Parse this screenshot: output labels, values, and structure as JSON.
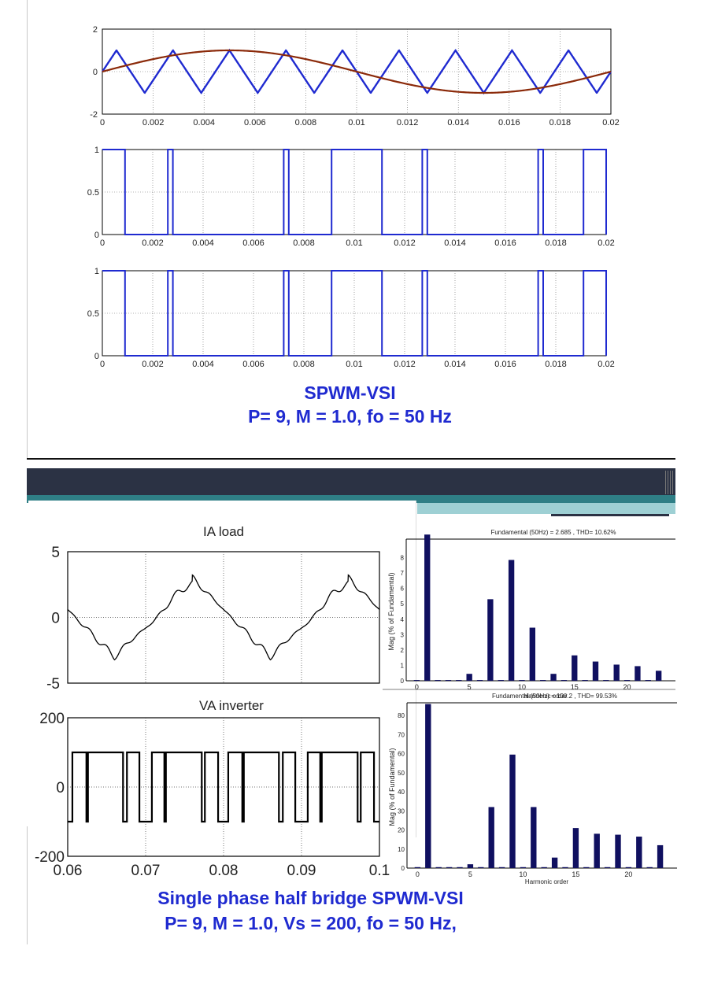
{
  "top_caption": {
    "line1": "SPWM-VSI",
    "line2": "P= 9, M = 1.0, fo = 50 Hz"
  },
  "bottom_caption": {
    "line1": "Single phase half bridge SPWM-VSI",
    "line2": "P= 9, M = 1.0, Vs = 200, fo = 50 Hz,"
  },
  "colors": {
    "carrier": "#1f2ad0",
    "reference": "#8b2a0a",
    "pulse": "#1f2ad0",
    "trace": "#000000",
    "bar": "#101060",
    "caption": "#1f2ad0"
  },
  "chart_data": [
    {
      "id": "carrier-reference",
      "type": "line",
      "title": "",
      "xlabel": "",
      "ylabel": "",
      "xlim": [
        0,
        0.02
      ],
      "ylim": [
        -2,
        2
      ],
      "xticks": [
        "0",
        "0.002",
        "0.004",
        "0.006",
        "0.008",
        "0.01",
        "0.012",
        "0.014",
        "0.016",
        "0.018",
        "0.02"
      ],
      "yticks": [
        "-2",
        "0",
        "2"
      ],
      "series": [
        {
          "name": "triangular carrier",
          "frequency_hz": 450,
          "amplitude": 1
        },
        {
          "name": "sine reference",
          "frequency_hz": 50,
          "amplitude": 1
        }
      ]
    },
    {
      "id": "gate-pulses-1",
      "type": "line",
      "xlim": [
        0,
        0.02
      ],
      "ylim": [
        0,
        1
      ],
      "xticks": [
        "0",
        "0.002",
        "0.004",
        "0.006",
        "0.008",
        "0.01",
        "0.012",
        "0.014",
        "0.016",
        "0.018",
        "0.02"
      ],
      "yticks": [
        "0",
        "0.5",
        "1"
      ],
      "transitions": [
        0.0009,
        0.0026,
        0.0028,
        0.0072,
        0.0074,
        0.0091,
        0.0111,
        0.0127,
        0.0129,
        0.0173,
        0.0175,
        0.0191
      ]
    },
    {
      "id": "gate-pulses-2",
      "type": "line",
      "xlim": [
        0,
        0.02
      ],
      "ylim": [
        0,
        1
      ],
      "xticks": [
        "0",
        "0.002",
        "0.004",
        "0.006",
        "0.008",
        "0.01",
        "0.012",
        "0.014",
        "0.016",
        "0.018",
        "0.02"
      ],
      "yticks": [
        "0",
        "0.5",
        "1"
      ],
      "transitions": [
        0.0009,
        0.0026,
        0.0028,
        0.0072,
        0.0074,
        0.0091,
        0.0111,
        0.0127,
        0.0129,
        0.0173,
        0.0175,
        0.0191
      ]
    },
    {
      "id": "ia-load",
      "type": "line",
      "title": "IA load",
      "xlim": [
        0.06,
        0.1
      ],
      "ylim": [
        -5,
        5
      ],
      "yticks": [
        "5",
        "0",
        "-5"
      ],
      "peak_amplitude": 3,
      "fundamental_hz": 50
    },
    {
      "id": "va-inverter",
      "type": "line",
      "title": "VA inverter",
      "xlim": [
        0.06,
        0.1
      ],
      "ylim": [
        -200,
        200
      ],
      "xticks": [
        "0.06",
        "0.07",
        "0.08",
        "0.09",
        "0.1"
      ],
      "yticks": [
        "200",
        "0",
        "-200"
      ],
      "levels": [
        100,
        -100
      ]
    },
    {
      "id": "fft-current",
      "type": "bar",
      "title": "Fundamental (50Hz) = 2.685 , THD= 10.62%",
      "xlabel": "Harmonic order",
      "ylabel": "Mag (% of Fundamental)",
      "ylim": [
        0,
        9
      ],
      "xlim": [
        -1,
        24
      ],
      "xticks": [
        "0",
        "5",
        "10",
        "15",
        "20"
      ],
      "yticks": [
        "0",
        "1",
        "2",
        "3",
        "4",
        "5",
        "6",
        "7",
        "8"
      ],
      "harmonics": [
        0,
        1,
        2,
        3,
        4,
        5,
        6,
        7,
        8,
        9,
        10,
        11,
        12,
        13,
        14,
        15,
        16,
        17,
        18,
        19,
        20,
        21,
        22,
        23
      ],
      "values": [
        0.05,
        9.5,
        0.05,
        0.05,
        0.05,
        0.45,
        0.05,
        5.3,
        0.05,
        7.85,
        0.05,
        3.45,
        0.05,
        0.45,
        0.05,
        1.65,
        0.05,
        1.25,
        0.05,
        1.05,
        0.05,
        0.95,
        0.05,
        0.65
      ]
    },
    {
      "id": "fft-voltage",
      "type": "bar",
      "title": "Fundamental (50Hz) = 100.2 , THD= 99.53%",
      "xlabel": "Harmonic order",
      "ylabel": "Mag (% of Fundamental)",
      "ylim": [
        0,
        85
      ],
      "xlim": [
        -1,
        24
      ],
      "xticks": [
        "0",
        "5",
        "10",
        "15",
        "20"
      ],
      "yticks": [
        "0",
        "10",
        "20",
        "30",
        "40",
        "50",
        "60",
        "70",
        "80"
      ],
      "harmonics": [
        0,
        1,
        2,
        3,
        4,
        5,
        6,
        7,
        8,
        9,
        10,
        11,
        12,
        13,
        14,
        15,
        16,
        17,
        18,
        19,
        20,
        21,
        22,
        23
      ],
      "values": [
        0.5,
        86,
        0.5,
        0.5,
        0.5,
        2,
        0.5,
        32,
        0.5,
        59.5,
        0.5,
        32,
        0.5,
        5.5,
        0.5,
        21,
        0.5,
        18,
        0.5,
        17.5,
        0.5,
        16.5,
        0.5,
        12
      ]
    }
  ]
}
